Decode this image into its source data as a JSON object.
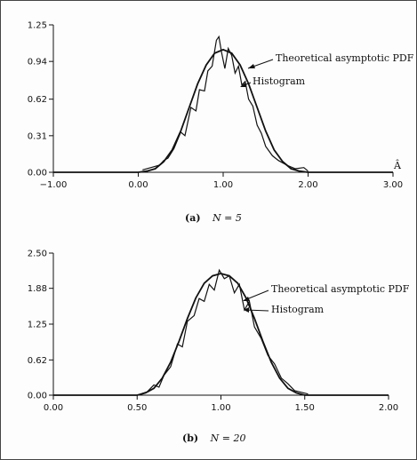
{
  "chart_data": [
    {
      "type": "line",
      "caption_tag": "(a)",
      "caption_eq": "N = 5",
      "xlabel": "Â",
      "xlim": [
        -1.0,
        3.0
      ],
      "ylim": [
        0.0,
        1.25
      ],
      "xticks": [
        -1.0,
        0.0,
        1.0,
        2.0,
        3.0
      ],
      "xtick_labels": [
        "−1.00",
        "0.00",
        "1.00",
        "2.00",
        "3.00"
      ],
      "yticks": [
        0.0,
        0.31,
        0.62,
        0.94,
        1.25
      ],
      "ytick_labels": [
        "0.00",
        "0.31",
        "0.62",
        "0.94",
        "1.25"
      ],
      "annotations": {
        "theory": "Theoretical asymptotic PDF",
        "hist": "Histogram"
      },
      "series": [
        {
          "name": "Theoretical asymptotic PDF",
          "x": [
            -1.0,
            0.0,
            0.1,
            0.2,
            0.3,
            0.4,
            0.5,
            0.6,
            0.7,
            0.8,
            0.9,
            1.0,
            1.1,
            1.2,
            1.3,
            1.4,
            1.5,
            1.6,
            1.7,
            1.8,
            1.9,
            2.0,
            3.0
          ],
          "y": [
            0.0,
            0.0,
            0.01,
            0.03,
            0.09,
            0.19,
            0.35,
            0.55,
            0.75,
            0.91,
            1.01,
            1.04,
            1.01,
            0.91,
            0.75,
            0.55,
            0.35,
            0.19,
            0.09,
            0.03,
            0.01,
            0.0,
            0.0
          ]
        },
        {
          "name": "Histogram",
          "x": [
            0.05,
            0.15,
            0.25,
            0.3,
            0.35,
            0.42,
            0.5,
            0.55,
            0.62,
            0.68,
            0.72,
            0.78,
            0.82,
            0.87,
            0.92,
            0.95,
            0.98,
            1.02,
            1.06,
            1.1,
            1.14,
            1.18,
            1.22,
            1.26,
            1.3,
            1.35,
            1.4,
            1.45,
            1.5,
            1.58,
            1.65,
            1.75,
            1.85,
            1.95,
            2.0
          ],
          "y": [
            0.02,
            0.04,
            0.06,
            0.1,
            0.12,
            0.2,
            0.34,
            0.31,
            0.55,
            0.52,
            0.7,
            0.69,
            0.86,
            0.9,
            1.12,
            1.15,
            1.02,
            0.88,
            1.05,
            0.99,
            0.84,
            0.9,
            0.74,
            0.77,
            0.62,
            0.56,
            0.4,
            0.33,
            0.22,
            0.14,
            0.1,
            0.06,
            0.03,
            0.04,
            0.01
          ]
        }
      ]
    },
    {
      "type": "line",
      "caption_tag": "(b)",
      "caption_eq": "N = 20",
      "xlabel": "",
      "xlim": [
        0.0,
        2.0
      ],
      "ylim": [
        0.0,
        2.5
      ],
      "xticks": [
        0.0,
        0.5,
        1.0,
        1.5,
        2.0
      ],
      "xtick_labels": [
        "0.00",
        "0.50",
        "1.00",
        "1.50",
        "2.00"
      ],
      "yticks": [
        0.0,
        0.62,
        1.25,
        1.88,
        2.5
      ],
      "ytick_labels": [
        "0.00",
        "0.62",
        "1.25",
        "1.88",
        "2.50"
      ],
      "annotations": {
        "theory": "Theoretical asymptotic PDF",
        "hist": "Histogram"
      },
      "series": [
        {
          "name": "Theoretical asymptotic PDF",
          "x": [
            0.0,
            0.5,
            0.55,
            0.6,
            0.65,
            0.7,
            0.75,
            0.8,
            0.85,
            0.9,
            0.95,
            1.0,
            1.05,
            1.1,
            1.15,
            1.2,
            1.25,
            1.3,
            1.35,
            1.4,
            1.45,
            1.5,
            2.0
          ],
          "y": [
            0.0,
            0.0,
            0.04,
            0.12,
            0.3,
            0.58,
            0.95,
            1.35,
            1.71,
            1.97,
            2.1,
            2.14,
            2.1,
            1.97,
            1.71,
            1.35,
            0.95,
            0.58,
            0.3,
            0.12,
            0.04,
            0.0,
            0.0
          ]
        },
        {
          "name": "Histogram",
          "x": [
            0.52,
            0.56,
            0.6,
            0.63,
            0.66,
            0.7,
            0.74,
            0.77,
            0.8,
            0.84,
            0.87,
            0.9,
            0.93,
            0.96,
            0.99,
            1.02,
            1.05,
            1.08,
            1.11,
            1.14,
            1.17,
            1.2,
            1.24,
            1.28,
            1.32,
            1.36,
            1.4,
            1.44,
            1.48,
            1.52
          ],
          "y": [
            0.02,
            0.06,
            0.18,
            0.14,
            0.35,
            0.5,
            0.9,
            0.85,
            1.3,
            1.4,
            1.7,
            1.65,
            1.95,
            1.85,
            2.2,
            2.05,
            2.1,
            1.8,
            1.95,
            1.5,
            1.65,
            1.2,
            1.0,
            0.7,
            0.55,
            0.3,
            0.2,
            0.08,
            0.05,
            0.02
          ]
        }
      ]
    }
  ]
}
